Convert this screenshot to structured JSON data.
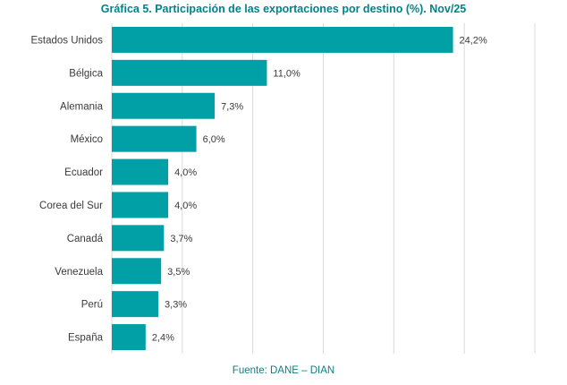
{
  "chart_data": {
    "type": "bar",
    "orientation": "horizontal",
    "title": "Gráfica 5. Participación de las exportaciones por destino (%). Nov/25",
    "source": "Fuente: DANE – DIAN",
    "categories": [
      "Estados Unidos",
      "Bélgica",
      "Alemania",
      "México",
      "Ecuador",
      "Corea del Sur",
      "Canadá",
      "Venezuela",
      "Perú",
      "España"
    ],
    "values": [
      24.2,
      11.0,
      7.3,
      6.0,
      4.0,
      4.0,
      3.7,
      3.5,
      3.3,
      2.4
    ],
    "value_labels": [
      "24,2%",
      "11,0%",
      "7,3%",
      "6,0%",
      "4,0%",
      "4,0%",
      "3,7%",
      "3,5%",
      "3,3%",
      "2,4%"
    ],
    "xlim": [
      0,
      30
    ],
    "grid": true,
    "bar_color": "#00a0a6",
    "title_color": "#00838a",
    "gridline_color": "#d9d9d9"
  }
}
